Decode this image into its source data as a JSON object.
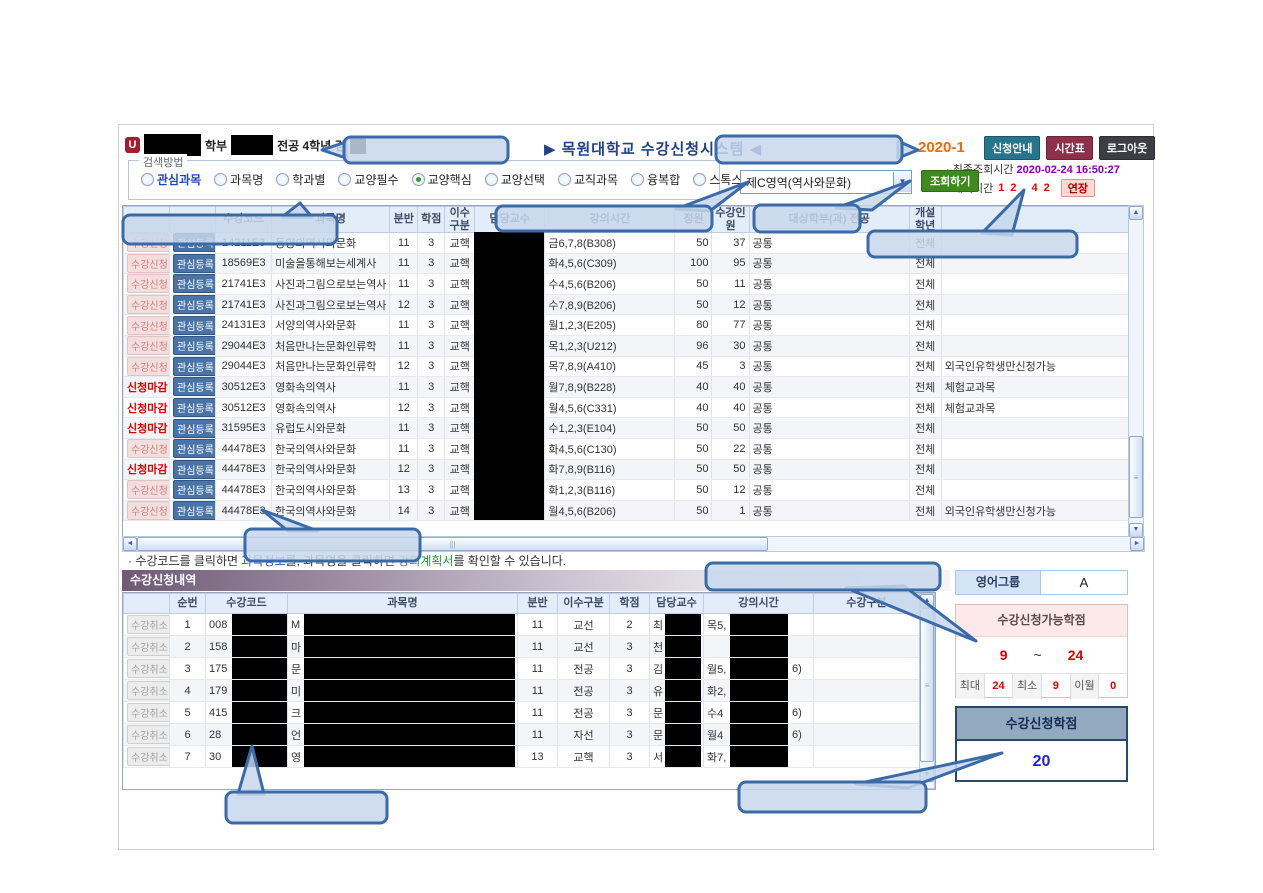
{
  "app": {
    "logo_glyph": "U",
    "title": "▶ 목원대학교 수강신청시스템 ◀",
    "term": "2020-1"
  },
  "student": {
    "dept_suffix": "학부",
    "major_suffix": "전공 4학년 김"
  },
  "topbar": {
    "buttons": [
      {
        "label": "신청안내"
      },
      {
        "label": "시간표"
      },
      {
        "label": "로그아웃"
      }
    ],
    "last_query_label": "· 최종조회시간",
    "last_query_time": "2020-02-24 16:50:27",
    "wait_label": "· 대기시간",
    "wait_time": "12 42",
    "extend_label": "연장"
  },
  "search": {
    "legend": "검색방법",
    "options": [
      {
        "label": "관심과목",
        "selected": false,
        "highlight": true
      },
      {
        "label": "과목명",
        "selected": false
      },
      {
        "label": "학과별",
        "selected": false
      },
      {
        "label": "교양필수",
        "selected": false
      },
      {
        "label": "교양핵심",
        "selected": true
      },
      {
        "label": "교양선택",
        "selected": false
      },
      {
        "label": "교직과목",
        "selected": false
      },
      {
        "label": "융복합",
        "selected": false
      },
      {
        "label": "스톡스·혁신교과",
        "selected": false
      }
    ],
    "select_value": "제C영역(역사와문화)",
    "dropdown_glyph": "▼",
    "query_label": "조회하기"
  },
  "course_table": {
    "headers": [
      "",
      "",
      "수강코드",
      "과목명",
      "분반",
      "학점",
      "이수구분",
      "담당교수",
      "강의시간",
      "정원",
      "수강인원",
      "대상학부(과) 전공",
      "개설학년",
      ""
    ],
    "apply_label": "수강신청",
    "closed_label": "신청마감",
    "interest_label": "관심등록",
    "rows": [
      {
        "closed": false,
        "code": "14211E3",
        "name": "동양의역사와문화",
        "ban": "11",
        "credit": "3",
        "type": "교핵",
        "time": "금6,7,8(B308)",
        "cap": "50",
        "enrolled": "37",
        "target": "공통",
        "grade": "전체",
        "remark": ""
      },
      {
        "closed": false,
        "code": "18569E3",
        "name": "미술을통해보는세계사",
        "ban": "11",
        "credit": "3",
        "type": "교핵",
        "time": "화4,5,6(C309)",
        "cap": "100",
        "enrolled": "95",
        "target": "공통",
        "grade": "전체",
        "remark": ""
      },
      {
        "closed": false,
        "code": "21741E3",
        "name": "사진과그림으로보는역사",
        "ban": "11",
        "credit": "3",
        "type": "교핵",
        "time": "수4,5,6(B206)",
        "cap": "50",
        "enrolled": "11",
        "target": "공통",
        "grade": "전체",
        "remark": ""
      },
      {
        "closed": false,
        "code": "21741E3",
        "name": "사진과그림으로보는역사",
        "ban": "12",
        "credit": "3",
        "type": "교핵",
        "time": "수7,8,9(B206)",
        "cap": "50",
        "enrolled": "12",
        "target": "공통",
        "grade": "전체",
        "remark": ""
      },
      {
        "closed": false,
        "code": "24131E3",
        "name": "서양의역사와문화",
        "ban": "11",
        "credit": "3",
        "type": "교핵",
        "time": "월1,2,3(E205)",
        "cap": "80",
        "enrolled": "77",
        "target": "공통",
        "grade": "전체",
        "remark": ""
      },
      {
        "closed": false,
        "code": "29044E3",
        "name": "처음만나는문화인류학",
        "ban": "11",
        "credit": "3",
        "type": "교핵",
        "time": "목1,2,3(U212)",
        "cap": "96",
        "enrolled": "30",
        "target": "공통",
        "grade": "전체",
        "remark": ""
      },
      {
        "closed": false,
        "code": "29044E3",
        "name": "처음만나는문화인류학",
        "ban": "12",
        "credit": "3",
        "type": "교핵",
        "time": "목7,8,9(A410)",
        "cap": "45",
        "enrolled": "3",
        "target": "공통",
        "grade": "전체",
        "remark": "외국인유학생만신청가능"
      },
      {
        "closed": true,
        "code": "30512E3",
        "name": "영화속의역사",
        "ban": "11",
        "credit": "3",
        "type": "교핵",
        "time": "월7,8,9(B228)",
        "cap": "40",
        "enrolled": "40",
        "target": "공통",
        "grade": "전체",
        "remark": "체험교과목"
      },
      {
        "closed": true,
        "code": "30512E3",
        "name": "영화속의역사",
        "ban": "12",
        "credit": "3",
        "type": "교핵",
        "time": "월4,5,6(C331)",
        "cap": "40",
        "enrolled": "40",
        "target": "공통",
        "grade": "전체",
        "remark": "체험교과목"
      },
      {
        "closed": true,
        "code": "31595E3",
        "name": "유럽도시와문화",
        "ban": "11",
        "credit": "3",
        "type": "교핵",
        "time": "수1,2,3(E104)",
        "cap": "50",
        "enrolled": "50",
        "target": "공통",
        "grade": "전체",
        "remark": ""
      },
      {
        "closed": false,
        "code": "44478E3",
        "name": "한국의역사와문화",
        "ban": "11",
        "credit": "3",
        "type": "교핵",
        "time": "화4,5,6(C130)",
        "cap": "50",
        "enrolled": "22",
        "target": "공통",
        "grade": "전체",
        "remark": ""
      },
      {
        "closed": true,
        "code": "44478E3",
        "name": "한국의역사와문화",
        "ban": "12",
        "credit": "3",
        "type": "교핵",
        "time": "화7,8,9(B116)",
        "cap": "50",
        "enrolled": "50",
        "target": "공통",
        "grade": "전체",
        "remark": ""
      },
      {
        "closed": false,
        "code": "44478E3",
        "name": "한국의역사와문화",
        "ban": "13",
        "credit": "3",
        "type": "교핵",
        "time": "화1,2,3(B116)",
        "cap": "50",
        "enrolled": "12",
        "target": "공통",
        "grade": "전체",
        "remark": ""
      },
      {
        "closed": false,
        "code": "44478E3",
        "name": "한국의역사와문화",
        "ban": "14",
        "credit": "3",
        "type": "교핵",
        "time": "월4,5,6(B206)",
        "cap": "50",
        "enrolled": "1",
        "target": "공통",
        "grade": "전체",
        "remark": "외국인유학생만신청가능"
      }
    ]
  },
  "note": {
    "part1": "· 수강코드를 클릭하면 ",
    "link1": "과목정보",
    "part2": "를, 과목명을 클릭하면 ",
    "link2": "강의계획서",
    "part3": "를 확인할 수 있습니다."
  },
  "enrolled": {
    "title": "수강신청내역",
    "cancel_label": "수강취소",
    "headers": [
      "",
      "순번",
      "수강코드",
      "과목명",
      "분반",
      "이수구분",
      "학점",
      "담당교수",
      "강의시간",
      "수강구분"
    ],
    "rows": [
      {
        "no": "1",
        "code": "008",
        "name": "M",
        "ban": "11",
        "type": "교선",
        "credit": "2",
        "prof": "최",
        "time": "목5,",
        "suffix": "",
        "div": ""
      },
      {
        "no": "2",
        "code": "158",
        "name": "마",
        "ban": "11",
        "type": "교선",
        "credit": "3",
        "prof": "천",
        "time": "",
        "suffix": "",
        "div": ""
      },
      {
        "no": "3",
        "code": "175",
        "name": "문",
        "ban": "11",
        "type": "전공",
        "credit": "3",
        "prof": "김",
        "time": "월5,",
        "suffix": "6)",
        "div": ""
      },
      {
        "no": "4",
        "code": "179",
        "name": "미",
        "ban": "11",
        "type": "전공",
        "credit": "3",
        "prof": "유",
        "time": "화2,",
        "suffix": "",
        "div": ""
      },
      {
        "no": "5",
        "code": "415",
        "name": "크",
        "ban": "11",
        "type": "전공",
        "credit": "3",
        "prof": "문",
        "time": "수4",
        "suffix": "6)",
        "div": ""
      },
      {
        "no": "6",
        "code": "28",
        "name": "언",
        "ban": "11",
        "type": "자선",
        "credit": "3",
        "prof": "문",
        "time": "월4",
        "suffix": "6)",
        "div": ""
      },
      {
        "no": "7",
        "code": "30",
        "name": "영",
        "ban": "13",
        "type": "교핵",
        "credit": "3",
        "prof": "서",
        "time": "화7,",
        "suffix": "",
        "div": ""
      }
    ]
  },
  "side": {
    "english_label": "영어그룹",
    "english_value": "A",
    "possible_title": "수강신청가능학점",
    "min": "9",
    "tilde": "~",
    "max": "24",
    "max_label": "최대",
    "max_value": "24",
    "min_label": "최소",
    "min_value": "9",
    "carry_label": "이월",
    "carry_value": "0",
    "credits_title": "수강신청학점",
    "credits_value": "20"
  },
  "scrollbar": {
    "up": "▲",
    "down": "▼",
    "left": "◄",
    "right": "►",
    "h_grip": "|||",
    "v_grip": "≡"
  },
  "colors": {
    "term_orange": "#ff6600",
    "title_navy": "#20418c",
    "interest_blue": "#4a74a8",
    "apply_pink": "#f3dede",
    "closed_red": "#dd0000",
    "query_green": "#3e8a1e",
    "time_purple": "#8a00b0",
    "credits_blue": "#2222cc",
    "course_name_brown": "#9c571f",
    "callout_blue": "#3a6ba8"
  }
}
